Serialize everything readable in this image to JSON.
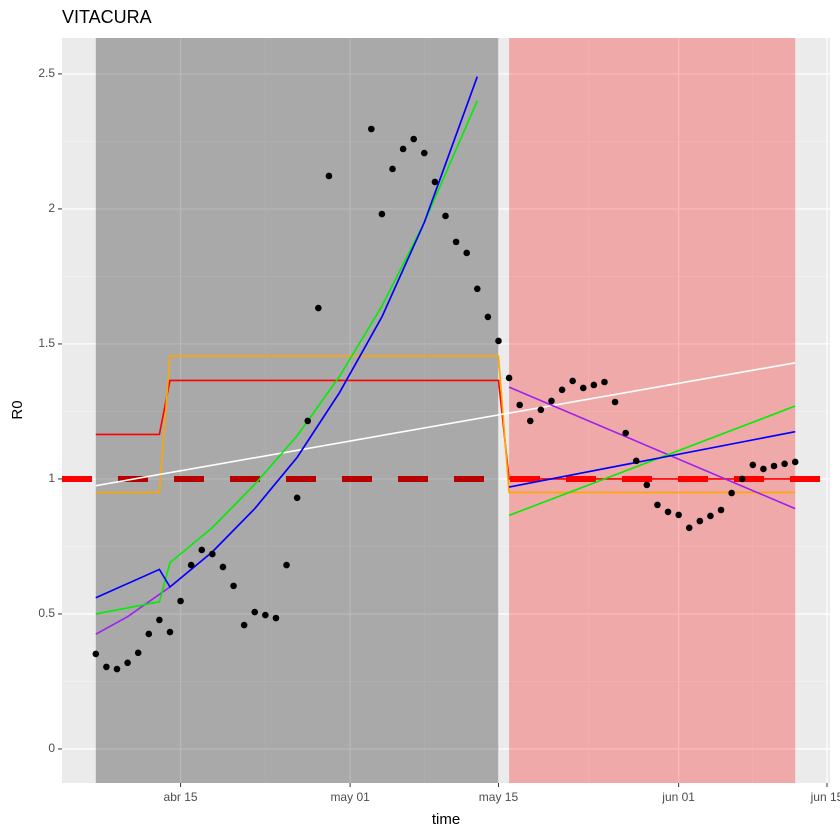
{
  "chart_data": {
    "type": "line",
    "title": "VITACURA",
    "x_label": "time",
    "y_label": "R0",
    "xlim": [
      "abr 04",
      "jun 15"
    ],
    "xticks": [
      "abr 15",
      "may 01",
      "may 15",
      "jun 01",
      "jun 15"
    ],
    "ylim": [
      -0.126,
      2.633
    ],
    "yticks": [
      0,
      0.5,
      1,
      1.5,
      2,
      2.5
    ],
    "grid": true,
    "regions": [
      {
        "start": "abr 07",
        "end": "may 15",
        "color": "#000000"
      },
      {
        "start": "may 16",
        "end": "jun 12",
        "color": "#ff0000"
      }
    ],
    "reference_line": {
      "value": 1,
      "color": "#ff0000"
    },
    "series": [
      {
        "color": "#ff0000",
        "x": [
          "abr 07",
          "abr 13",
          "abr 14",
          "may 15",
          "may 16",
          "jun 12"
        ],
        "values": [
          1.165,
          1.165,
          1.365,
          1.365,
          1.0,
          1.0
        ]
      },
      {
        "color": "#ffa500",
        "x": [
          "abr 07",
          "abr 13",
          "abr 14",
          "may 15",
          "may 16",
          "jun 12"
        ],
        "values": [
          0.95,
          0.95,
          1.455,
          1.455,
          0.95,
          0.95
        ]
      },
      {
        "color": "#ffffff",
        "x": [
          "abr 07",
          "jun 12"
        ],
        "values": [
          0.975,
          1.43
        ]
      },
      {
        "color": "#a020f0",
        "x": [
          "abr 07",
          "abr 10",
          "abr 14",
          "abr 18",
          "abr 22",
          "abr 26",
          "abr 30",
          "may 04",
          "may 08",
          "may 13"
        ],
        "values": [
          0.425,
          0.49,
          0.6,
          0.73,
          0.89,
          1.08,
          1.32,
          1.6,
          1.95,
          2.49
        ]
      },
      {
        "color": "#a020f0",
        "x": [
          "may 16",
          "jun 12"
        ],
        "values": [
          1.34,
          0.89
        ]
      },
      {
        "color": "#00ee00",
        "x": [
          "abr 07",
          "abr 13",
          "abr 14",
          "abr 18",
          "abr 22",
          "abr 26",
          "abr 30",
          "may 04",
          "may 08",
          "may 13"
        ],
        "values": [
          0.5,
          0.545,
          0.69,
          0.82,
          0.98,
          1.16,
          1.38,
          1.64,
          1.95,
          2.4
        ]
      },
      {
        "color": "#00ee00",
        "x": [
          "may 16",
          "jun 12"
        ],
        "values": [
          0.865,
          1.27
        ]
      },
      {
        "color": "#0000ff",
        "x": [
          "abr 07",
          "abr 13",
          "abr 14",
          "abr 18",
          "abr 22",
          "abr 26",
          "abr 30",
          "may 04",
          "may 08",
          "may 13"
        ],
        "values": [
          0.56,
          0.665,
          0.6,
          0.73,
          0.89,
          1.08,
          1.32,
          1.6,
          1.95,
          2.49
        ]
      },
      {
        "color": "#0000ff",
        "x": [
          "may 16",
          "jun 12"
        ],
        "values": [
          0.97,
          1.175
        ]
      }
    ],
    "points": {
      "color": "#000000",
      "x": [
        "abr 07",
        "abr 08",
        "abr 09",
        "abr 10",
        "abr 11",
        "abr 12",
        "abr 13",
        "abr 14",
        "abr 15",
        "abr 16",
        "abr 17",
        "abr 18",
        "abr 19",
        "abr 20",
        "abr 21",
        "abr 22",
        "abr 23",
        "abr 24",
        "abr 25",
        "abr 26",
        "abr 27",
        "abr 28",
        "abr 29",
        "abr 30",
        "may 01",
        "may 02",
        "may 03",
        "may 04",
        "may 05",
        "may 06",
        "may 07",
        "may 08",
        "may 09",
        "may 10",
        "may 11",
        "may 12",
        "may 13",
        "may 14",
        "may 15",
        "may 16",
        "may 17",
        "may 18",
        "may 19",
        "may 20",
        "may 21",
        "may 22",
        "may 23",
        "may 24",
        "may 25",
        "may 26",
        "may 27",
        "may 28",
        "may 29",
        "may 30",
        "may 31",
        "jun 01",
        "jun 02",
        "jun 03",
        "jun 04",
        "jun 05",
        "jun 06",
        "jun 07",
        "jun 08",
        "jun 09",
        "jun 10",
        "jun 11",
        "jun 12"
      ],
      "values": [
        0.352,
        0.304,
        0.296,
        0.319,
        0.356,
        0.426,
        0.478,
        0.433,
        0.548,
        0.681,
        0.737,
        0.722,
        0.674,
        0.604,
        0.459,
        0.507,
        0.496,
        0.485,
        0.681,
        0.93,
        1.215,
        1.633,
        2.122,
        null,
        null,
        null,
        2.296,
        1.981,
        2.148,
        2.222,
        2.259,
        2.207,
        2.1,
        1.974,
        1.878,
        1.837,
        1.704,
        1.6,
        1.511,
        1.374,
        1.274,
        1.215,
        1.256,
        1.289,
        1.33,
        1.363,
        1.337,
        1.348,
        1.359,
        1.285,
        1.17,
        1.067,
        0.978,
        0.904,
        0.878,
        0.867,
        0.819,
        0.844,
        0.863,
        0.885,
        0.948,
        1.0,
        1.052,
        1.037,
        1.048,
        1.056,
        1.063
      ]
    }
  }
}
